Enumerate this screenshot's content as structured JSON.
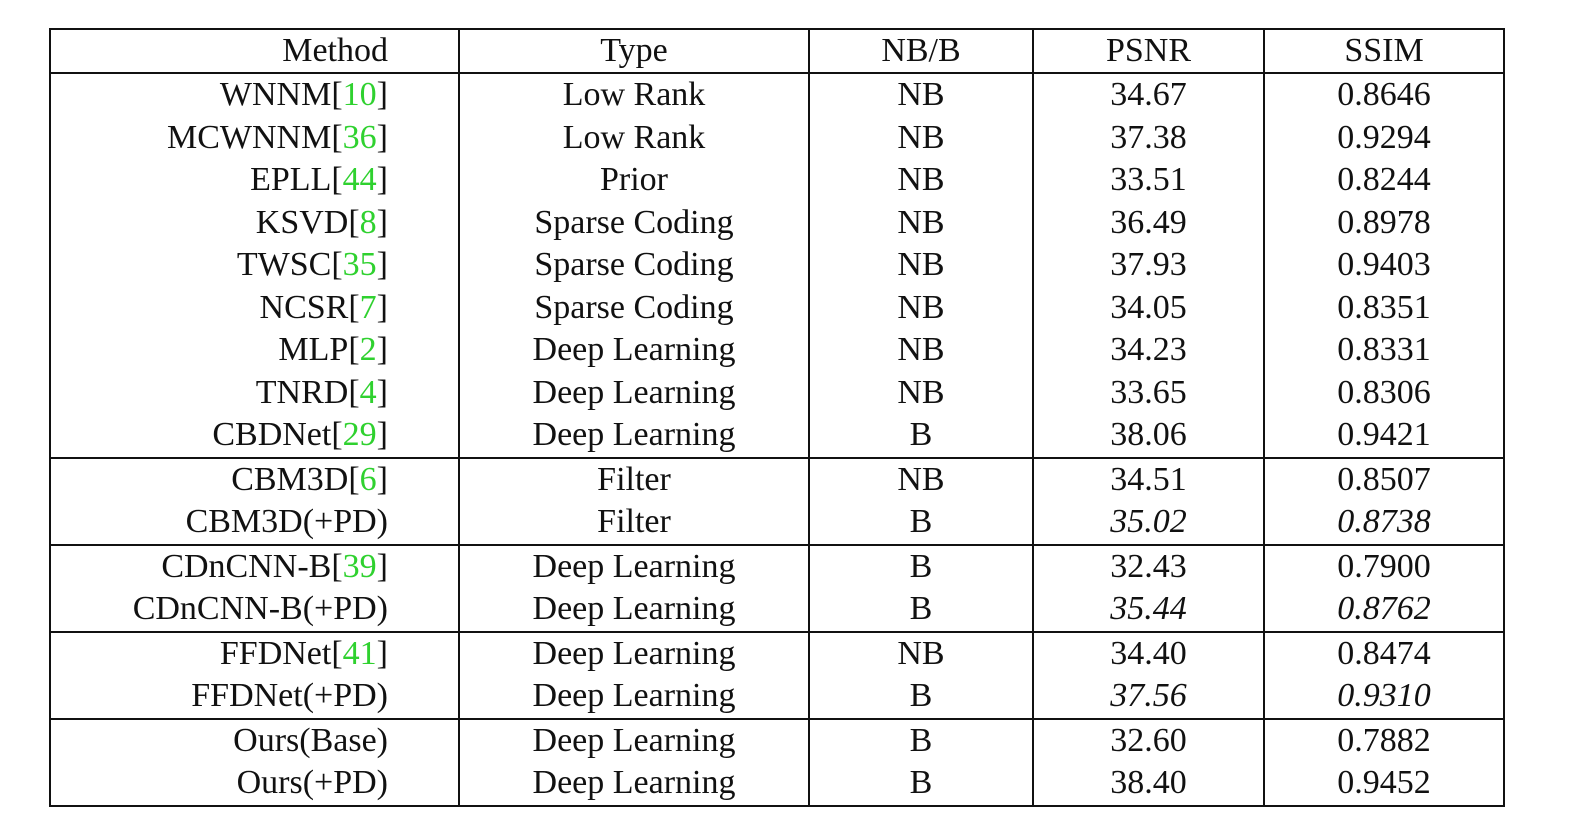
{
  "chart_data": {
    "type": "table",
    "columns": [
      "Method",
      "Type",
      "NB/B",
      "PSNR",
      "SSIM"
    ],
    "groups": [
      {
        "rows": [
          {
            "method": "WNNM",
            "ref": "10",
            "type": "Low Rank",
            "nbb": "NB",
            "psnr": "34.67",
            "ssim": "0.8646",
            "style": "normal"
          },
          {
            "method": "MCWNNM",
            "ref": "36",
            "type": "Low Rank",
            "nbb": "NB",
            "psnr": "37.38",
            "ssim": "0.9294",
            "style": "normal"
          },
          {
            "method": "EPLL",
            "ref": "44",
            "type": "Prior",
            "nbb": "NB",
            "psnr": "33.51",
            "ssim": "0.8244",
            "style": "normal"
          },
          {
            "method": "KSVD",
            "ref": "8",
            "type": "Sparse Coding",
            "nbb": "NB",
            "psnr": "36.49",
            "ssim": "0.8978",
            "style": "normal"
          },
          {
            "method": "TWSC",
            "ref": "35",
            "type": "Sparse Coding",
            "nbb": "NB",
            "psnr": "37.93",
            "ssim": "0.9403",
            "style": "normal"
          },
          {
            "method": "NCSR",
            "ref": "7",
            "type": "Sparse Coding",
            "nbb": "NB",
            "psnr": "34.05",
            "ssim": "0.8351",
            "style": "normal"
          },
          {
            "method": "MLP",
            "ref": "2",
            "type": "Deep Learning",
            "nbb": "NB",
            "psnr": "34.23",
            "ssim": "0.8331",
            "style": "normal"
          },
          {
            "method": "TNRD",
            "ref": "4",
            "type": "Deep Learning",
            "nbb": "NB",
            "psnr": "33.65",
            "ssim": "0.8306",
            "style": "normal"
          },
          {
            "method": "CBDNet",
            "ref": "29",
            "type": "Deep Learning",
            "nbb": "B",
            "psnr": "38.06",
            "ssim": "0.9421",
            "style": "normal"
          }
        ]
      },
      {
        "rows": [
          {
            "method": "CBM3D",
            "ref": "6",
            "type": "Filter",
            "nbb": "NB",
            "psnr": "34.51",
            "ssim": "0.8507",
            "style": "normal"
          },
          {
            "method": "CBM3D(+PD)",
            "ref": "",
            "type": "Filter",
            "nbb": "B",
            "psnr": "35.02",
            "ssim": "0.8738",
            "style": "italic"
          }
        ]
      },
      {
        "rows": [
          {
            "method": "CDnCNN-B",
            "ref": "39",
            "type": "Deep Learning",
            "nbb": "B",
            "psnr": "32.43",
            "ssim": "0.7900",
            "style": "normal"
          },
          {
            "method": "CDnCNN-B(+PD)",
            "ref": "",
            "type": "Deep Learning",
            "nbb": "B",
            "psnr": "35.44",
            "ssim": "0.8762",
            "style": "italic"
          }
        ]
      },
      {
        "rows": [
          {
            "method": "FFDNet",
            "ref": "41",
            "type": "Deep Learning",
            "nbb": "NB",
            "psnr": "34.40",
            "ssim": "0.8474",
            "style": "normal"
          },
          {
            "method": "FFDNet(+PD)",
            "ref": "",
            "type": "Deep Learning",
            "nbb": "B",
            "psnr": "37.56",
            "ssim": "0.9310",
            "style": "italic"
          }
        ]
      },
      {
        "rows": [
          {
            "method": "Ours(Base)",
            "ref": "",
            "type": "Deep Learning",
            "nbb": "B",
            "psnr": "32.60",
            "ssim": "0.7882",
            "style": "normal"
          },
          {
            "method": "Ours(+PD)",
            "ref": "",
            "type": "Deep Learning",
            "nbb": "B",
            "psnr": "38.40",
            "ssim": "0.9452",
            "style": "bold"
          }
        ]
      }
    ],
    "colors": {
      "text": "#111111",
      "reference": "#2fd12f",
      "rule": "#111111"
    }
  }
}
